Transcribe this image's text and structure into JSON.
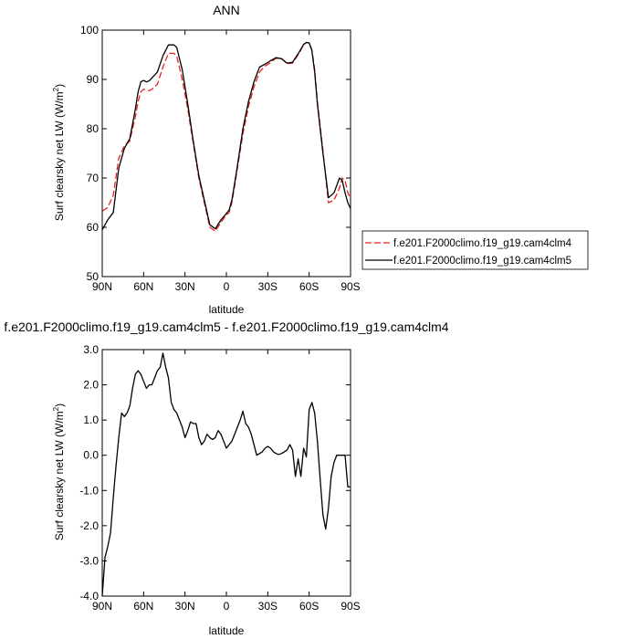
{
  "chart_data": [
    {
      "type": "line",
      "title": "ANN",
      "xlabel": "latitude",
      "ylabel": "Surf clearsky net LW (W/m²)",
      "ylabel_parts": {
        "main": "Surf clearsky net LW (W/m",
        "sup": "2",
        "close": ")"
      },
      "xlim": [
        90,
        -90
      ],
      "ylim": [
        50,
        100
      ],
      "x_ticks": [
        90,
        60,
        30,
        0,
        -30,
        -60,
        -90
      ],
      "x_tick_labels": [
        "90N",
        "60N",
        "30N",
        "0",
        "30S",
        "60S",
        "90S"
      ],
      "y_ticks": [
        50,
        60,
        70,
        80,
        90,
        100
      ],
      "y_tick_labels": [
        "50",
        "60",
        "70",
        "80",
        "90",
        "100"
      ],
      "grid": false,
      "legend_position": "right",
      "series": [
        {
          "name": "f.e201.F2000climo.f19_g19.cam4clm4",
          "color": "#e8231f",
          "dash": "dashed",
          "x": [
            90,
            86,
            82,
            78,
            74,
            70,
            66,
            64,
            62,
            60,
            58,
            56,
            54,
            50,
            46,
            42,
            38,
            36,
            32,
            28,
            24,
            20,
            16,
            12,
            8,
            4,
            0,
            -2,
            -4,
            -6,
            -8,
            -12,
            -16,
            -20,
            -24,
            -28,
            -32,
            -36,
            -40,
            -44,
            -48,
            -52,
            -56,
            -58,
            -60,
            -62,
            -64,
            -66,
            -70,
            -74,
            -78,
            -82,
            -84,
            -86,
            -88,
            -90
          ],
          "y": [
            63.3,
            64,
            66.5,
            74,
            76.5,
            77.5,
            82.5,
            85.5,
            87.5,
            88,
            87.8,
            87.7,
            88,
            89,
            92.5,
            95.3,
            95.3,
            94.7,
            90,
            84,
            77,
            70,
            65,
            60,
            59.2,
            61,
            62.5,
            63,
            65,
            68.5,
            72,
            79,
            84.5,
            88.5,
            91.5,
            92.7,
            93.4,
            94.3,
            94.2,
            93.2,
            93.3,
            95,
            97,
            97.5,
            97.4,
            96,
            92,
            85.5,
            75.5,
            65,
            65.5,
            68,
            70,
            69.5,
            67,
            65.8
          ]
        },
        {
          "name": "f.e201.F2000climo.f19_g19.cam4clm5",
          "color": "#000000",
          "dash": "solid",
          "x": [
            90,
            86,
            82,
            78,
            74,
            70,
            66,
            64,
            62,
            60,
            58,
            56,
            54,
            50,
            46,
            42,
            38,
            36,
            32,
            28,
            24,
            20,
            16,
            12,
            8,
            4,
            0,
            -2,
            -4,
            -6,
            -8,
            -12,
            -16,
            -20,
            -24,
            -28,
            -32,
            -36,
            -40,
            -44,
            -48,
            -52,
            -56,
            -58,
            -60,
            -62,
            -64,
            -66,
            -70,
            -74,
            -78,
            -82,
            -84,
            -86,
            -88,
            -90
          ],
          "y": [
            59.5,
            61.5,
            63,
            72,
            76,
            78,
            84,
            87.5,
            89.5,
            89.8,
            89.5,
            89.7,
            90.3,
            91.5,
            94.8,
            97,
            97,
            96.5,
            92,
            85,
            77.5,
            70.5,
            65.5,
            60.5,
            59.7,
            61.5,
            62.8,
            63.5,
            65.5,
            69,
            72.5,
            80,
            85.5,
            89.5,
            92.5,
            93.1,
            93.8,
            94.4,
            94.2,
            93.3,
            93.5,
            95.2,
            97.1,
            97.5,
            97.4,
            95.8,
            91.5,
            85,
            75,
            66,
            67,
            70,
            69.5,
            67,
            65,
            63.8
          ]
        }
      ]
    },
    {
      "type": "line",
      "title": "f.e201.F2000climo.f19_g19.cam4clm5 - f.e201.F2000climo.f19_g19.cam4clm4",
      "xlabel": "latitude",
      "ylabel": "Surf clearsky net LW (W/m²)",
      "ylabel_parts": {
        "main": "Surf clearsky net LW (W/m",
        "sup": "2",
        "close": ")"
      },
      "xlim": [
        90,
        -90
      ],
      "ylim": [
        -4,
        3
      ],
      "x_ticks": [
        90,
        60,
        30,
        0,
        -30,
        -60,
        -90
      ],
      "x_tick_labels": [
        "90N",
        "60N",
        "30N",
        "0",
        "30S",
        "60S",
        "90S"
      ],
      "y_ticks": [
        -4,
        -3,
        -2,
        -1,
        0,
        1,
        2,
        3
      ],
      "y_tick_labels": [
        "-4.0",
        "-3.0",
        "-2.0",
        "-1.0",
        "0.0",
        "1.0",
        "2.0",
        "3.0"
      ],
      "grid": false,
      "series": [
        {
          "color": "#000000",
          "dash": "solid",
          "x": [
            90,
            88,
            86,
            84,
            82,
            80,
            78,
            76,
            74,
            72,
            70,
            68,
            66,
            64,
            62,
            60,
            58,
            56,
            54,
            52,
            50,
            48,
            46,
            44,
            42,
            40,
            38,
            36,
            34,
            32,
            30,
            28,
            26,
            24,
            22,
            20,
            18,
            16,
            14,
            12,
            10,
            8,
            6,
            4,
            2,
            0,
            -2,
            -4,
            -6,
            -8,
            -10,
            -12,
            -14,
            -16,
            -18,
            -20,
            -22,
            -24,
            -26,
            -28,
            -30,
            -32,
            -34,
            -36,
            -38,
            -40,
            -42,
            -44,
            -46,
            -48,
            -50,
            -52,
            -54,
            -56,
            -58,
            -60,
            -62,
            -64,
            -66,
            -68,
            -70,
            -72,
            -74,
            -76,
            -78,
            -80,
            -82,
            -84,
            -86,
            -88,
            -90
          ],
          "y": [
            -4,
            -2.9,
            -2.6,
            -2.2,
            -1.2,
            -0.3,
            0.5,
            1.2,
            1.1,
            1.2,
            1.4,
            1.9,
            2.3,
            2.4,
            2.3,
            2.1,
            1.9,
            2.0,
            2.0,
            2.2,
            2.4,
            2.5,
            2.9,
            2.5,
            2.2,
            1.5,
            1.3,
            1.2,
            1.0,
            0.8,
            0.5,
            0.7,
            0.95,
            0.9,
            0.9,
            0.5,
            0.3,
            0.4,
            0.6,
            0.5,
            0.45,
            0.5,
            0.7,
            0.6,
            0.4,
            0.2,
            0.3,
            0.4,
            0.6,
            0.8,
            1.0,
            1.25,
            0.9,
            0.8,
            0.6,
            0.3,
            0.0,
            0.05,
            0.1,
            0.2,
            0.25,
            0.2,
            0.1,
            0.05,
            0.02,
            0.05,
            0.1,
            0.15,
            0.3,
            0.15,
            -0.6,
            -0.1,
            -0.6,
            0.2,
            -0.05,
            1.3,
            1.5,
            1.2,
            0.4,
            -0.7,
            -1.7,
            -2.1,
            -1.5,
            -0.6,
            -0.2,
            0.0,
            0.0,
            0.0,
            0.0,
            -0.9,
            -0.9
          ]
        }
      ]
    }
  ]
}
